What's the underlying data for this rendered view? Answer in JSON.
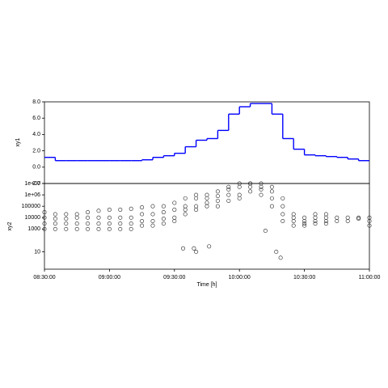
{
  "chart_data": [
    {
      "type": "step",
      "ylabel": "xy1",
      "color": "#0000ff",
      "x": [
        "08:30:00",
        "08:35:00",
        "08:40:00",
        "08:45:00",
        "08:50:00",
        "08:55:00",
        "09:00:00",
        "09:05:00",
        "09:10:00",
        "09:15:00",
        "09:20:00",
        "09:25:00",
        "09:30:00",
        "09:35:00",
        "09:40:00",
        "09:45:00",
        "09:50:00",
        "09:55:00",
        "10:00:00",
        "10:05:00",
        "10:10:00",
        "10:15:00",
        "10:20:00",
        "10:25:00",
        "10:30:00",
        "10:35:00",
        "10:40:00",
        "10:45:00",
        "10:50:00",
        "10:55:00",
        "11:00:00"
      ],
      "values": [
        1.2,
        0.8,
        0.8,
        0.8,
        0.8,
        0.8,
        0.8,
        0.8,
        0.8,
        0.9,
        1.2,
        1.4,
        1.7,
        2.5,
        3.3,
        3.5,
        4.5,
        6.5,
        7.4,
        7.8,
        7.8,
        6.5,
        3.5,
        2.2,
        1.5,
        1.4,
        1.3,
        1.2,
        1.0,
        0.8,
        0.8
      ],
      "xlim": [
        "08:30:00",
        "11:00:00"
      ],
      "ylim": [
        -2,
        8
      ],
      "yticks": [
        {
          "value": -2,
          "label": "-2.0"
        },
        {
          "value": 0,
          "label": "0.0"
        },
        {
          "value": 2,
          "label": "2.0"
        },
        {
          "value": 4,
          "label": "4.0"
        },
        {
          "value": 6,
          "label": "6.0"
        },
        {
          "value": 8,
          "label": "8.0"
        }
      ]
    },
    {
      "type": "scatter",
      "ylabel": "xy2",
      "xlabel": "Time [h]",
      "color": "#222222",
      "log_scale": true,
      "x": [
        "08:30:00",
        "08:30:00",
        "08:30:00",
        "08:30:00",
        "08:35:00",
        "08:35:00",
        "08:35:00",
        "08:35:00",
        "08:40:00",
        "08:40:00",
        "08:40:00",
        "08:40:00",
        "08:45:00",
        "08:45:00",
        "08:45:00",
        "08:45:00",
        "08:50:00",
        "08:50:00",
        "08:50:00",
        "08:50:00",
        "08:55:00",
        "08:55:00",
        "08:55:00",
        "08:55:00",
        "09:00:00",
        "09:00:00",
        "09:00:00",
        "09:00:00",
        "09:05:00",
        "09:05:00",
        "09:05:00",
        "09:05:00",
        "09:10:00",
        "09:10:00",
        "09:10:00",
        "09:10:00",
        "09:15:00",
        "09:15:00",
        "09:15:00",
        "09:15:00",
        "09:20:00",
        "09:20:00",
        "09:20:00",
        "09:20:00",
        "09:25:00",
        "09:25:00",
        "09:25:00",
        "09:25:00",
        "09:30:00",
        "09:30:00",
        "09:30:00",
        "09:30:00",
        "09:35:00",
        "09:35:00",
        "09:35:00",
        "09:35:00",
        "09:34:00",
        "09:40:00",
        "09:40:00",
        "09:40:00",
        "09:40:00",
        "09:39:00",
        "09:40:00",
        "09:45:00",
        "09:45:00",
        "09:45:00",
        "09:45:00",
        "09:46:00",
        "09:50:00",
        "09:50:00",
        "09:50:00",
        "09:50:00",
        "09:55:00",
        "09:55:00",
        "09:55:00",
        "09:55:00",
        "10:00:00",
        "10:00:00",
        "10:00:00",
        "10:00:00",
        "10:05:00",
        "10:05:00",
        "10:05:00",
        "10:05:00",
        "10:10:00",
        "10:10:00",
        "10:10:00",
        "10:10:00",
        "10:15:00",
        "10:15:00",
        "10:15:00",
        "10:15:00",
        "10:12:00",
        "10:20:00",
        "10:20:00",
        "10:20:00",
        "10:20:00",
        "10:17:00",
        "10:19:00",
        "10:25:00",
        "10:25:00",
        "10:25:00",
        "10:25:00",
        "10:30:00",
        "10:30:00",
        "10:30:00",
        "10:30:00",
        "10:35:00",
        "10:35:00",
        "10:35:00",
        "10:35:00",
        "10:40:00",
        "10:40:00",
        "10:40:00",
        "10:40:00",
        "10:45:00",
        "10:45:00",
        "10:50:00",
        "10:50:00",
        "10:55:00",
        "10:55:00",
        "11:00:00",
        "11:00:00",
        "11:00:00"
      ],
      "values": [
        1000,
        3000,
        10000,
        30000,
        1000,
        3000,
        8000,
        20000,
        1000,
        3000,
        8000,
        20000,
        1000,
        3000,
        10000,
        20000,
        1000,
        3000,
        10000,
        30000,
        1000,
        3000,
        10000,
        40000,
        1000,
        3000,
        10000,
        50000,
        1000,
        3000,
        10000,
        50000,
        1000,
        3000,
        10000,
        60000,
        2000,
        5000,
        20000,
        80000,
        2000,
        5000,
        20000,
        100000,
        3000,
        8000,
        30000,
        100000,
        5000,
        10000,
        50000,
        200000,
        20000,
        50000,
        100000,
        500000,
        20,
        50000,
        100000,
        500000,
        1000000,
        20,
        10,
        100000,
        200000,
        500000,
        1000000,
        30,
        100000,
        300000,
        800000,
        2000000,
        300000,
        1000000,
        3000000,
        5000000,
        500000,
        1000000,
        5000000,
        10000000,
        2000000,
        5000000,
        10000000,
        10000000,
        1000000,
        3000000,
        5000000,
        10000000,
        100000,
        500000,
        2000000,
        5000000,
        700,
        5000,
        20000,
        100000,
        500000,
        10,
        3,
        2000,
        5000,
        10000,
        20000,
        2000,
        3000,
        5000,
        10000,
        3000,
        5000,
        10000,
        20000,
        3000,
        5000,
        10000,
        20000,
        5000,
        10000,
        5000,
        10000,
        8000,
        10000,
        2000,
        5000,
        10000
      ],
      "xlim": [
        "08:30:00",
        "11:00:00"
      ],
      "ylim": [
        0.3,
        10000000
      ],
      "xticks": [
        "08:30:00",
        "09:00:00",
        "09:30:00",
        "10:00:00",
        "10:30:00",
        "11:00:00"
      ],
      "yticks": [
        10,
        1000,
        10000,
        100000,
        {
          "value": 1000000,
          "label": "1e+06"
        },
        {
          "value": 10000000,
          "label": "1e+07"
        }
      ]
    }
  ]
}
